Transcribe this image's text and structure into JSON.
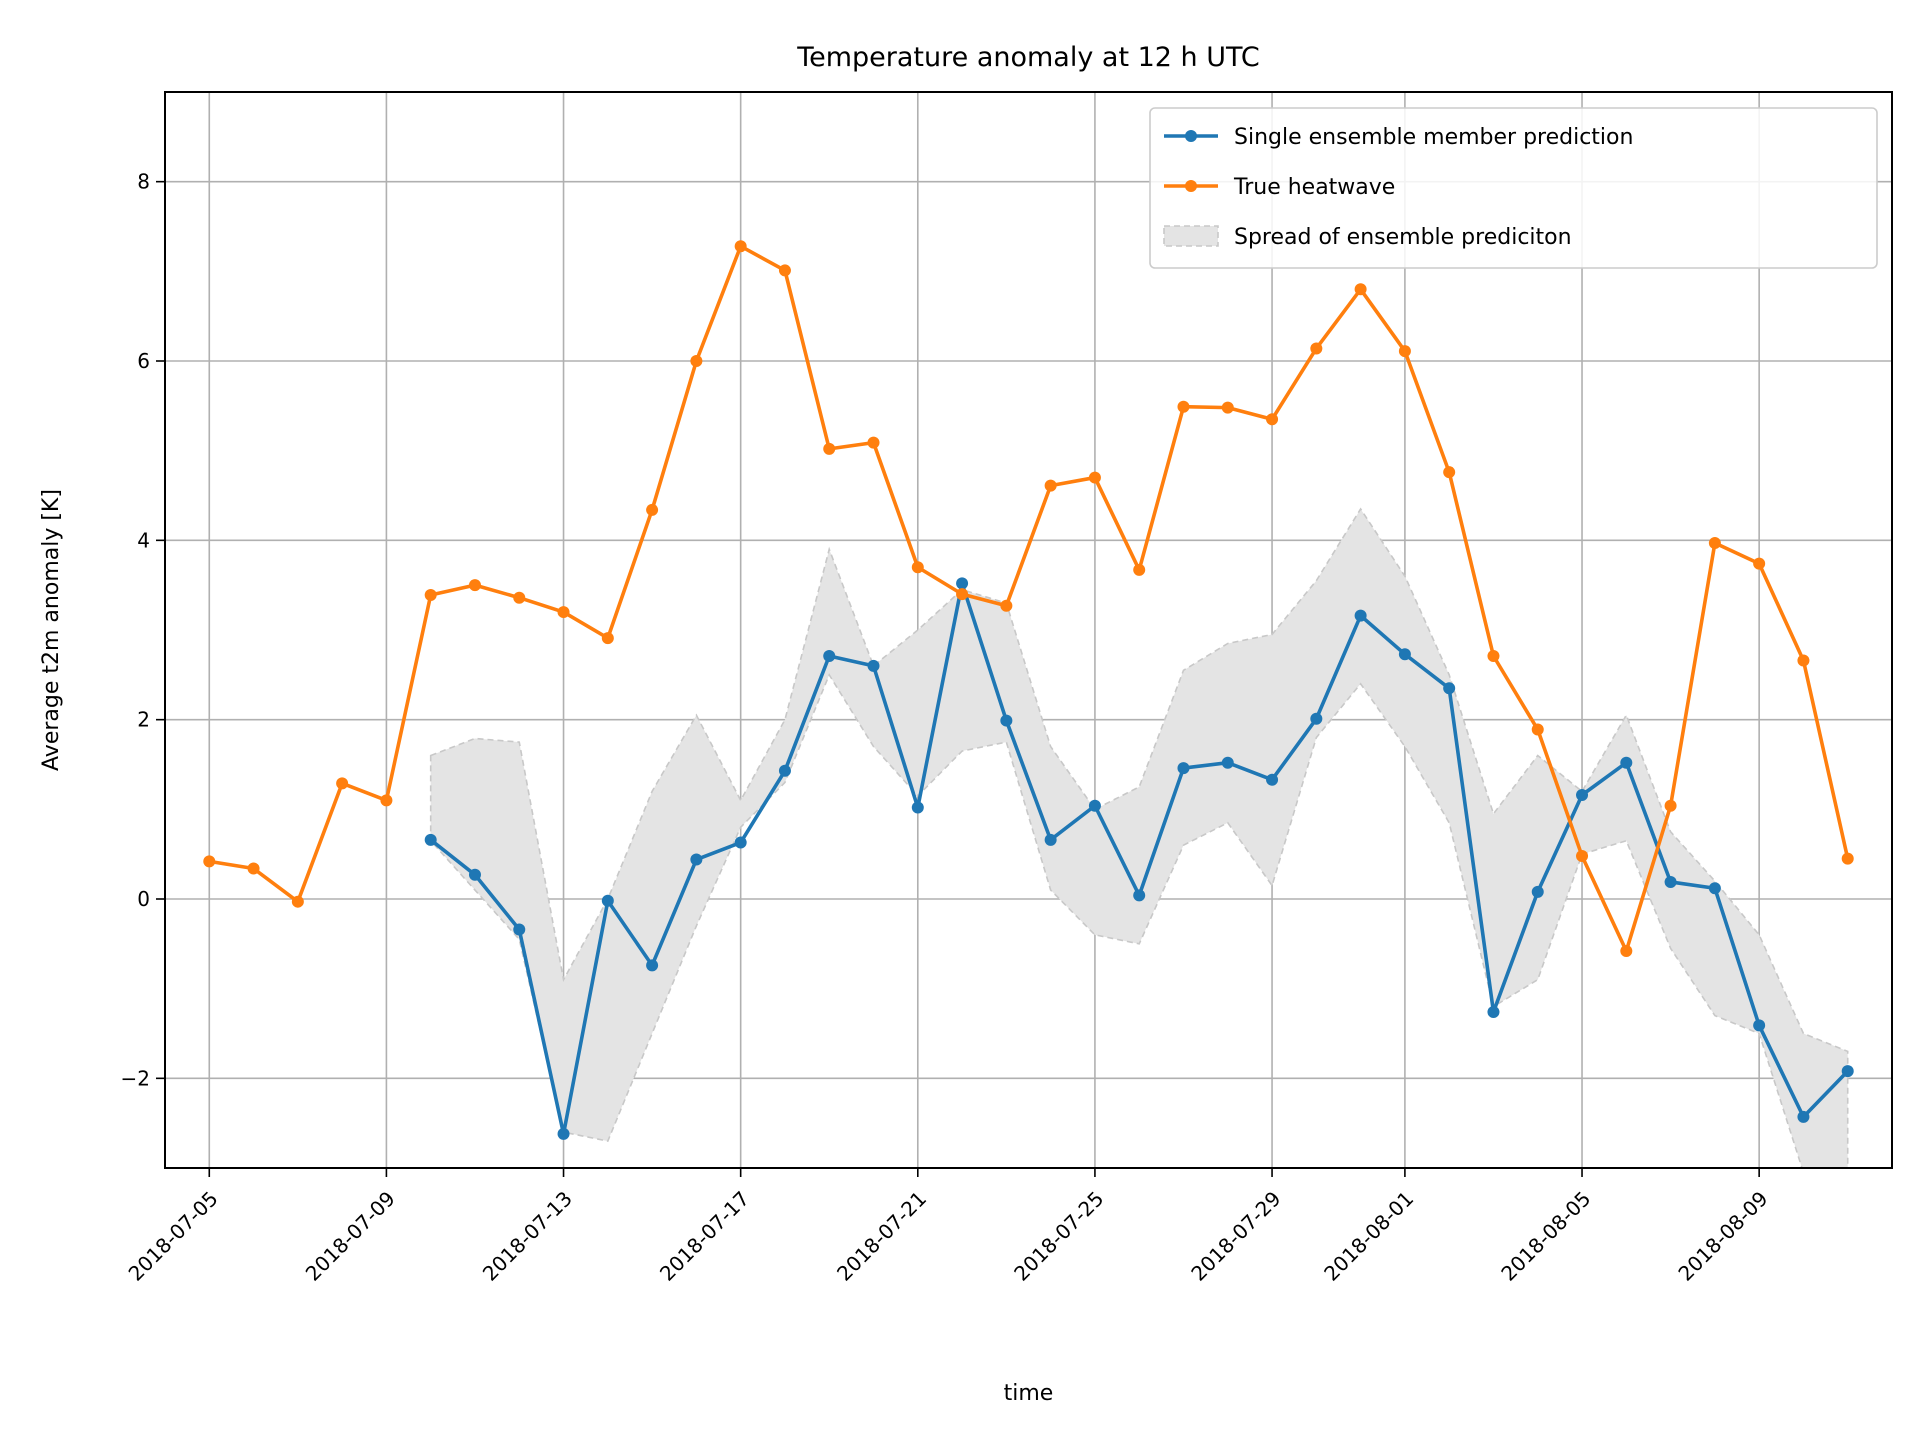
{
  "chart_data": {
    "type": "line",
    "title": "Temperature anomaly at 12 h UTC",
    "xlabel": "time",
    "ylabel": "Average t2m anomaly [K]",
    "x_axis_kind": "date",
    "xlim": [
      "2018-07-04",
      "2018-08-12"
    ],
    "ylim": [
      -3.0,
      9.0
    ],
    "x_ticks": [
      "2018-07-05",
      "2018-07-09",
      "2018-07-13",
      "2018-07-17",
      "2018-07-21",
      "2018-07-25",
      "2018-07-29",
      "2018-08-01",
      "2018-08-05",
      "2018-08-09"
    ],
    "y_ticks": [
      -2,
      0,
      2,
      4,
      6,
      8
    ],
    "y_tick_labels": [
      "−2",
      "0",
      "2",
      "4",
      "6",
      "8"
    ],
    "grid": true,
    "legend_position": "top-right",
    "colors": {
      "ensemble_member": "#1f77b4",
      "true_heatwave": "#ff7f0e",
      "spread_fill": "#e4e4e4",
      "spread_edge": "#c8c8c8",
      "grid": "#b0b0b0"
    },
    "series": [
      {
        "name": "Single ensemble member prediction",
        "color": "#1f77b4",
        "points": [
          [
            "2018-07-10",
            0.66
          ],
          [
            "2018-07-11",
            0.27
          ],
          [
            "2018-07-12",
            -0.34
          ],
          [
            "2018-07-13",
            -2.62
          ],
          [
            "2018-07-14",
            -0.02
          ],
          [
            "2018-07-15",
            -0.74
          ],
          [
            "2018-07-16",
            0.44
          ],
          [
            "2018-07-17",
            0.63
          ],
          [
            "2018-07-18",
            1.43
          ],
          [
            "2018-07-19",
            2.71
          ],
          [
            "2018-07-20",
            2.6
          ],
          [
            "2018-07-21",
            1.02
          ],
          [
            "2018-07-22",
            3.52
          ],
          [
            "2018-07-23",
            1.99
          ],
          [
            "2018-07-24",
            0.66
          ],
          [
            "2018-07-25",
            1.04
          ],
          [
            "2018-07-26",
            0.04
          ],
          [
            "2018-07-27",
            1.46
          ],
          [
            "2018-07-28",
            1.52
          ],
          [
            "2018-07-29",
            1.33
          ],
          [
            "2018-07-30",
            2.01
          ],
          [
            "2018-07-31",
            3.16
          ],
          [
            "2018-08-01",
            2.73
          ],
          [
            "2018-08-02",
            2.35
          ],
          [
            "2018-08-03",
            -1.26
          ],
          [
            "2018-08-04",
            0.08
          ],
          [
            "2018-08-05",
            1.16
          ],
          [
            "2018-08-06",
            1.52
          ],
          [
            "2018-08-07",
            0.19
          ],
          [
            "2018-08-08",
            0.12
          ],
          [
            "2018-08-09",
            -1.41
          ],
          [
            "2018-08-10",
            -2.43
          ],
          [
            "2018-08-11",
            -1.92
          ]
        ]
      },
      {
        "name": "True heatwave",
        "color": "#ff7f0e",
        "points": [
          [
            "2018-07-05",
            0.42
          ],
          [
            "2018-07-06",
            0.34
          ],
          [
            "2018-07-07",
            -0.03
          ],
          [
            "2018-07-08",
            1.29
          ],
          [
            "2018-07-09",
            1.1
          ],
          [
            "2018-07-10",
            3.39
          ],
          [
            "2018-07-11",
            3.5
          ],
          [
            "2018-07-12",
            3.36
          ],
          [
            "2018-07-13",
            3.2
          ],
          [
            "2018-07-14",
            2.91
          ],
          [
            "2018-07-15",
            4.34
          ],
          [
            "2018-07-16",
            6.0
          ],
          [
            "2018-07-17",
            7.28
          ],
          [
            "2018-07-18",
            7.01
          ],
          [
            "2018-07-19",
            5.02
          ],
          [
            "2018-07-20",
            5.09
          ],
          [
            "2018-07-21",
            3.7
          ],
          [
            "2018-07-22",
            3.4
          ],
          [
            "2018-07-23",
            3.27
          ],
          [
            "2018-07-24",
            4.61
          ],
          [
            "2018-07-25",
            4.7
          ],
          [
            "2018-07-26",
            3.67
          ],
          [
            "2018-07-27",
            5.49
          ],
          [
            "2018-07-28",
            5.48
          ],
          [
            "2018-07-29",
            5.35
          ],
          [
            "2018-07-30",
            6.14
          ],
          [
            "2018-07-31",
            6.8
          ],
          [
            "2018-08-01",
            6.11
          ],
          [
            "2018-08-02",
            4.76
          ],
          [
            "2018-08-03",
            2.71
          ],
          [
            "2018-08-04",
            1.89
          ],
          [
            "2018-08-05",
            0.48
          ],
          [
            "2018-08-06",
            -0.58
          ],
          [
            "2018-08-07",
            1.04
          ],
          [
            "2018-08-08",
            3.97
          ],
          [
            "2018-08-09",
            3.74
          ],
          [
            "2018-08-10",
            2.66
          ],
          [
            "2018-08-11",
            0.45
          ]
        ]
      }
    ],
    "spread": {
      "name": "Spread of ensemble prediciton",
      "dates": [
        "2018-07-10",
        "2018-07-11",
        "2018-07-12",
        "2018-07-13",
        "2018-07-14",
        "2018-07-15",
        "2018-07-16",
        "2018-07-17",
        "2018-07-18",
        "2018-07-19",
        "2018-07-20",
        "2018-07-21",
        "2018-07-22",
        "2018-07-23",
        "2018-07-24",
        "2018-07-25",
        "2018-07-26",
        "2018-07-27",
        "2018-07-28",
        "2018-07-29",
        "2018-07-30",
        "2018-07-31",
        "2018-08-01",
        "2018-08-02",
        "2018-08-03",
        "2018-08-04",
        "2018-08-05",
        "2018-08-06",
        "2018-08-07",
        "2018-08-08",
        "2018-08-09",
        "2018-08-10",
        "2018-08-11"
      ],
      "upper": [
        1.6,
        1.79,
        1.75,
        -0.9,
        0.0,
        1.2,
        2.05,
        1.1,
        2.0,
        3.9,
        2.6,
        3.0,
        3.45,
        3.3,
        1.7,
        1.0,
        1.25,
        2.55,
        2.85,
        2.95,
        3.55,
        4.35,
        3.6,
        2.5,
        0.95,
        1.6,
        1.2,
        2.05,
        0.75,
        0.2,
        -0.4,
        -1.5,
        -1.7
      ],
      "lower": [
        0.65,
        0.1,
        -0.45,
        -2.6,
        -2.7,
        -1.5,
        -0.3,
        0.8,
        1.3,
        2.5,
        1.7,
        1.15,
        1.65,
        1.75,
        0.1,
        -0.4,
        -0.5,
        0.6,
        0.85,
        0.15,
        1.8,
        2.4,
        1.7,
        0.85,
        -1.2,
        -0.9,
        0.5,
        0.65,
        -0.55,
        -1.3,
        -1.5,
        -3.05,
        -3.05
      ]
    }
  }
}
